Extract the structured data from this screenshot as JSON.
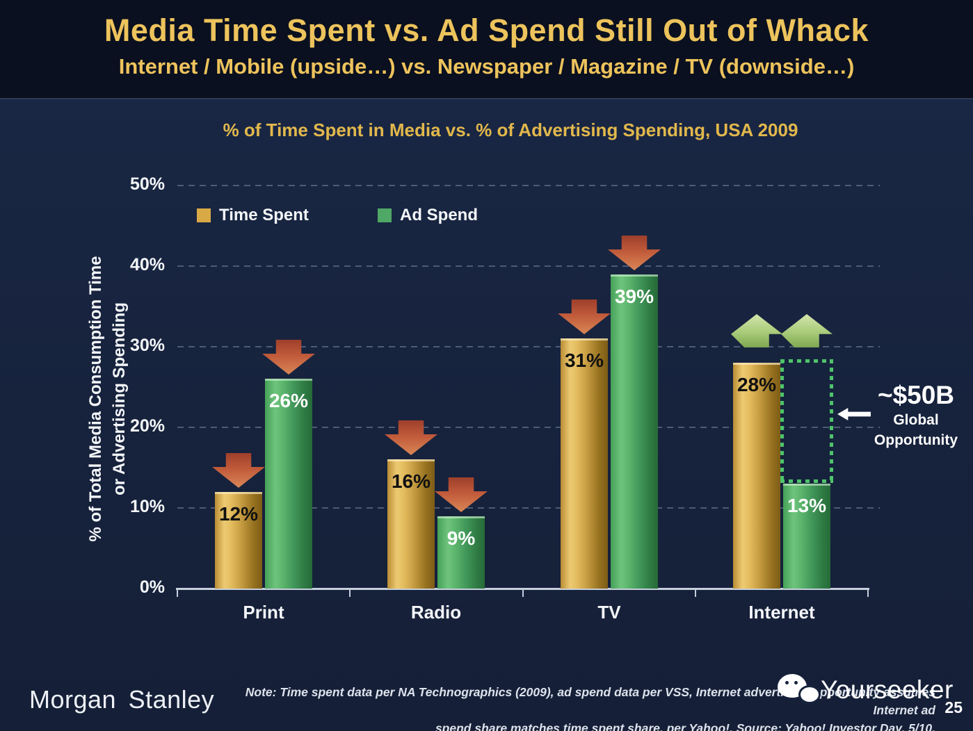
{
  "slide": {
    "title": "Media Time Spent vs. Ad Spend Still Out of Whack",
    "subtitle": "Internet / Mobile (upside…) vs. Newspaper / Magazine / TV (downside…)"
  },
  "chart": {
    "title": "% of Time Spent in Media vs. % of Advertising Spending, USA 2009",
    "y_axis_label_line1": "% of Total Media Consumption Time",
    "y_axis_label_line2": "or Advertising Spending",
    "y_ticks": [
      "50%",
      "40%",
      "30%",
      "20%",
      "10%",
      "0%"
    ],
    "legend": [
      {
        "label": "Time Spent",
        "color": "#D9A945"
      },
      {
        "label": "Ad Spend",
        "color": "#4FA865"
      }
    ]
  },
  "chart_data": {
    "type": "bar",
    "categories": [
      "Print",
      "Radio",
      "TV",
      "Internet"
    ],
    "series": [
      {
        "name": "Time Spent",
        "values": [
          12,
          16,
          31,
          28
        ],
        "color": "#D9A945"
      },
      {
        "name": "Ad Spend",
        "values": [
          26,
          9,
          39,
          13
        ],
        "color": "#4FA865"
      }
    ],
    "value_labels": [
      [
        "12%",
        "26%"
      ],
      [
        "16%",
        "9%"
      ],
      [
        "31%",
        "39%"
      ],
      [
        "28%",
        "13%"
      ]
    ],
    "title": "% of Time Spent in Media vs. % of Advertising Spending, USA 2009",
    "xlabel": "",
    "ylabel": "% of Total Media Consumption Time or Advertising Spending",
    "ylim": [
      0,
      50
    ],
    "grid": "dashed horizontal lines at 10% intervals",
    "legend_position": "top-left inside plot",
    "arrows": [
      "down",
      "down",
      "down",
      "up"
    ],
    "arrow_colors": {
      "down": "#C05A3A",
      "up": "#A8CB79"
    },
    "annotation_gap": {
      "category": "Internet",
      "from_pct": 28,
      "to_pct": 13,
      "color": "#4EC46A"
    }
  },
  "annotation": {
    "value": "~$50B",
    "line1": "Global",
    "line2": "Opportunity"
  },
  "footer": {
    "brand": "Morgan Stanley",
    "note_line1": "Note: Time spent data per NA Technographics (2009), ad spend data per VSS, Internet advertising opportunity assumes Internet ad",
    "note_line2": "spend share matches time spent share, per Yahoo!. Source: Yahoo! Investor Day, 5/10.",
    "watermark": "Yourseeker",
    "page_number": "25"
  },
  "colors": {
    "background": "#17233D",
    "header_background": "#0A101F",
    "title_gold": "#EDC35C",
    "bar_gold": "#D9A945",
    "bar_green": "#4FA865",
    "down_arrow_red": "#C05A3A",
    "up_arrow_green": "#A8CB79",
    "dotted_green": "#4EC46A",
    "axis_gray": "#C6CFDC"
  }
}
